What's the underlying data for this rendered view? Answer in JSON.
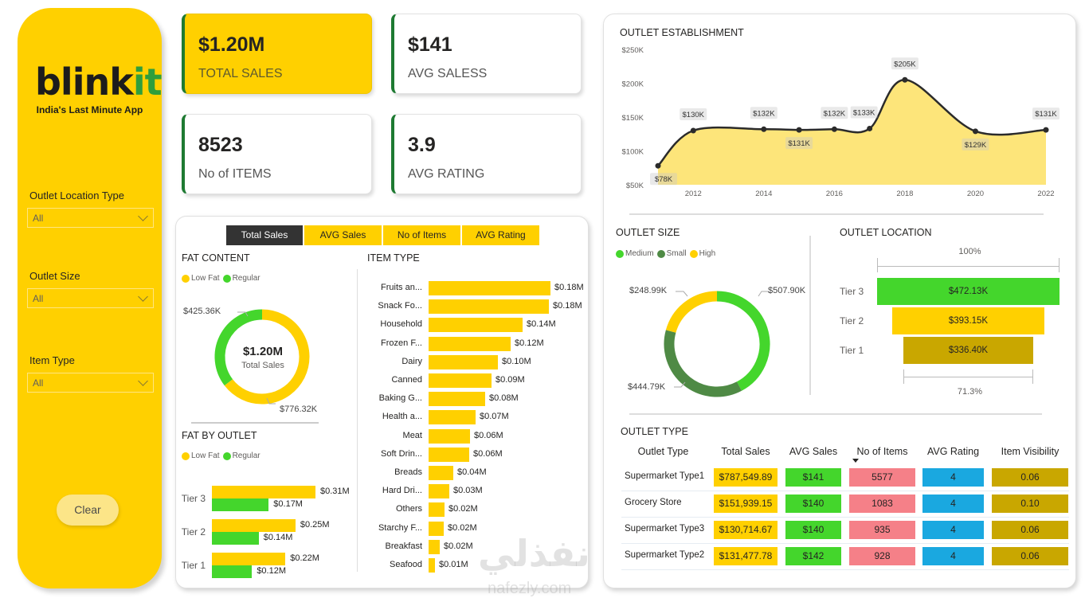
{
  "sidebar": {
    "logo_main": "blink",
    "logo_accent": "it",
    "tagline": "India's Last Minute App",
    "filters": [
      {
        "label": "Outlet Location Type",
        "value": "All"
      },
      {
        "label": "Outlet Size",
        "value": "All"
      },
      {
        "label": "Item Type",
        "value": "All"
      }
    ],
    "clear_label": "Clear"
  },
  "kpis": [
    {
      "value": "$1.20M",
      "label": "TOTAL SALES"
    },
    {
      "value": "$141",
      "label": "AVG SALESS"
    },
    {
      "value": "8523",
      "label": "No of ITEMS"
    },
    {
      "value": "3.9",
      "label": "AVG RATING"
    }
  ],
  "tabs": [
    {
      "label": "Total Sales",
      "active": true
    },
    {
      "label": "AVG Sales",
      "active": false
    },
    {
      "label": "No of Items",
      "active": false
    },
    {
      "label": "AVG Rating",
      "active": false
    }
  ],
  "colors": {
    "yellow": "#ffd000",
    "green": "#44d62c",
    "dark_green": "#4f8a45",
    "olive": "#c9a700",
    "pink": "#f58088",
    "blue": "#1aa8e0",
    "area_fill": "#fde57a",
    "line": "#2b2b2b"
  },
  "fat_content": {
    "title": "FAT CONTENT",
    "legend": [
      "Low Fat",
      "Regular"
    ],
    "center_value": "$1.20M",
    "center_label": "Total Sales",
    "labels": [
      "$776.32K",
      "$425.36K"
    ]
  },
  "fat_by_outlet": {
    "title": "FAT BY OUTLET",
    "legend": [
      "Low Fat",
      "Regular"
    ],
    "labels": {
      "tier3_low": "$0.31M",
      "tier3_reg": "$0.17M",
      "tier2_low": "$0.25M",
      "tier2_reg": "$0.14M",
      "tier1_low": "$0.22M",
      "tier1_reg": "$0.12M"
    },
    "tiers": [
      "Tier 3",
      "Tier 2",
      "Tier 1"
    ]
  },
  "item_type": {
    "title": "ITEM TYPE"
  },
  "outlet_establishment": {
    "title": "OUTLET ESTABLISHMENT"
  },
  "outlet_size": {
    "title": "OUTLET SIZE",
    "legend": [
      "Medium",
      "Small",
      "High"
    ],
    "labels": [
      "$507.90K",
      "$444.79K",
      "$248.99K"
    ]
  },
  "outlet_location": {
    "title": "OUTLET LOCATION",
    "top_pct": "100%",
    "bottom_pct": "71.3%",
    "tiers": [
      {
        "label": "Tier 3",
        "value": "$472.13K"
      },
      {
        "label": "Tier 2",
        "value": "$393.15K"
      },
      {
        "label": "Tier 1",
        "value": "$336.40K"
      }
    ]
  },
  "outlet_type": {
    "title": "OUTLET TYPE",
    "headers": [
      "Outlet Type",
      "Total Sales",
      "AVG Sales",
      "No of Items",
      "AVG Rating",
      "Item Visibility"
    ],
    "rows": [
      {
        "name": "Supermarket Type1",
        "total": "$787,549.89",
        "avg": "$141",
        "items": "5577",
        "rating": "4",
        "visibility": "0.06"
      },
      {
        "name": "Grocery Store",
        "total": "$151,939.15",
        "avg": "$140",
        "items": "1083",
        "rating": "4",
        "visibility": "0.10"
      },
      {
        "name": "Supermarket Type3",
        "total": "$130,714.67",
        "avg": "$140",
        "items": "935",
        "rating": "4",
        "visibility": "0.06"
      },
      {
        "name": "Supermarket Type2",
        "total": "$131,477.78",
        "avg": "$142",
        "items": "928",
        "rating": "4",
        "visibility": "0.06"
      }
    ]
  },
  "watermark": {
    "arabic": "نفذلي",
    "latin": "nafezly.com"
  },
  "chart_data": [
    {
      "type": "pie",
      "title": "FAT CONTENT",
      "categories": [
        "Low Fat",
        "Regular"
      ],
      "values": [
        776.32,
        425.36
      ],
      "unit": "K$",
      "center": "$1.20M Total Sales"
    },
    {
      "type": "bar",
      "title": "FAT BY OUTLET",
      "categories": [
        "Tier 3",
        "Tier 2",
        "Tier 1"
      ],
      "series": [
        {
          "name": "Low Fat",
          "values": [
            0.31,
            0.25,
            0.22
          ]
        },
        {
          "name": "Regular",
          "values": [
            0.17,
            0.14,
            0.12
          ]
        }
      ],
      "unit": "M$",
      "orientation": "horizontal"
    },
    {
      "type": "bar",
      "title": "ITEM TYPE",
      "orientation": "horizontal",
      "categories": [
        "Fruits an...",
        "Snack Fo...",
        "Household",
        "Frozen F...",
        "Dairy",
        "Canned",
        "Baking G...",
        "Health a...",
        "Meat",
        "Soft Drin...",
        "Breads",
        "Hard Dri...",
        "Others",
        "Starchy F...",
        "Breakfast",
        "Seafood"
      ],
      "values": [
        0.18,
        0.18,
        0.14,
        0.12,
        0.1,
        0.09,
        0.08,
        0.07,
        0.06,
        0.06,
        0.04,
        0.03,
        0.02,
        0.02,
        0.02,
        0.01
      ],
      "labels": [
        "$0.18M",
        "$0.18M",
        "$0.14M",
        "$0.12M",
        "$0.10M",
        "$0.09M",
        "$0.08M",
        "$0.07M",
        "$0.06M",
        "$0.06M",
        "$0.04M",
        "$0.03M",
        "$0.02M",
        "$0.02M",
        "$0.02M",
        "$0.01M"
      ],
      "unit": "M$"
    },
    {
      "type": "area",
      "title": "OUTLET ESTABLISHMENT",
      "x": [
        2011,
        2012,
        2014,
        2015,
        2016,
        2017,
        2018,
        2020,
        2022
      ],
      "values": [
        78,
        130,
        132,
        131,
        132,
        133,
        205,
        129,
        131
      ],
      "labels": [
        "$78K",
        "$130K",
        "$132K",
        "$131K",
        "$132K",
        "$133K",
        "$205K",
        "$129K",
        "$131K"
      ],
      "xticks": [
        "2012",
        "2014",
        "2016",
        "2018",
        "2020",
        "2022"
      ],
      "yticks": [
        "$50K",
        "$100K",
        "$150K",
        "$200K",
        "$250K"
      ],
      "ylim": [
        50,
        250
      ],
      "xlim": [
        2011,
        2022
      ],
      "unit": "K$"
    },
    {
      "type": "pie",
      "title": "OUTLET SIZE",
      "categories": [
        "Medium",
        "Small",
        "High"
      ],
      "values": [
        507.9,
        444.79,
        248.99
      ],
      "unit": "K$"
    },
    {
      "type": "bar",
      "title": "OUTLET LOCATION",
      "subtype": "funnel",
      "categories": [
        "Tier 3",
        "Tier 2",
        "Tier 1"
      ],
      "values": [
        472.13,
        393.15,
        336.4
      ],
      "unit": "K$",
      "top_percent": 100,
      "bottom_percent": 71.3
    }
  ]
}
